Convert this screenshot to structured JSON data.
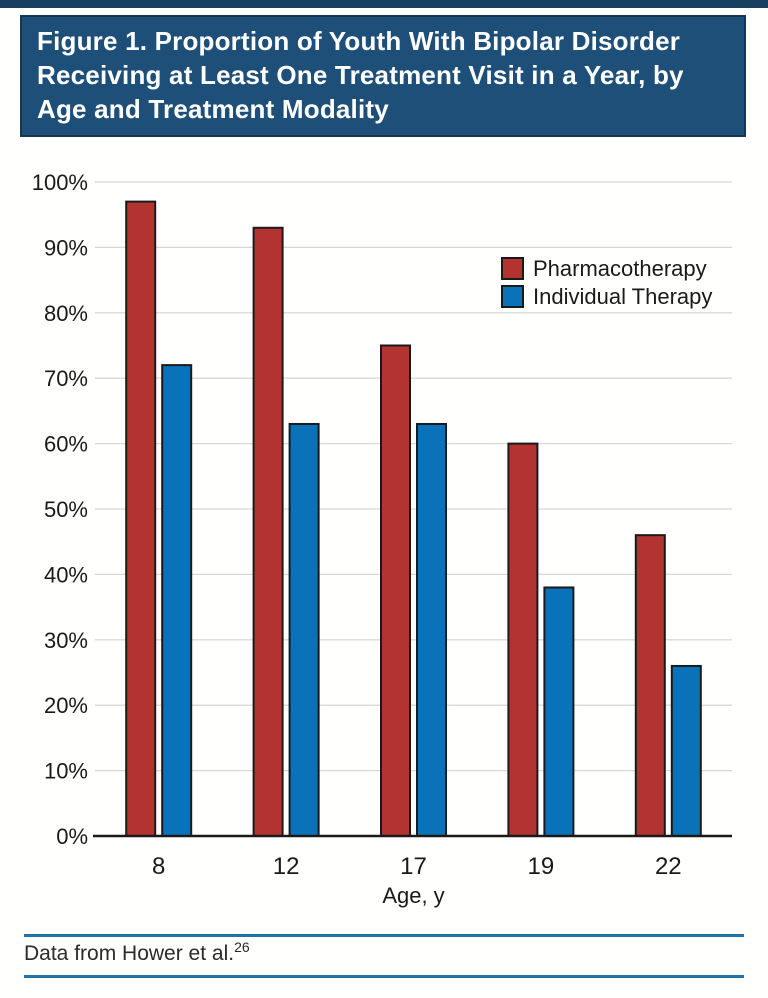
{
  "figure": {
    "title": "Figure 1. Proportion of Youth With Bipolar Disorder Receiving at Least One Treatment Visit in a Year, by Age and Treatment Modality",
    "footer": {
      "source_text": "Data from Hower et al.",
      "citation_superscript": "26"
    }
  },
  "colors": {
    "top_strip": "#173f5f",
    "title_bar_bg": "#1d4f78",
    "title_bar_border": "#143853",
    "footer_rule": "#2173a6",
    "pharmacotherapy_bar": "#b33331",
    "individual_therapy_bar": "#0a72b8",
    "axis": "#1a1a1a",
    "gridline": "#d8d8d8"
  },
  "chart_data": {
    "type": "bar",
    "title": "",
    "categories": [
      "8",
      "12",
      "17",
      "19",
      "22"
    ],
    "series": [
      {
        "name": "Pharmacotherapy",
        "color": "#b33331",
        "values": [
          97,
          93,
          75,
          60,
          46
        ]
      },
      {
        "name": "Individual Therapy",
        "color": "#0a72b8",
        "values": [
          72,
          63,
          63,
          38,
          26
        ]
      }
    ],
    "xlabel": "Age, y",
    "ylabel": "",
    "ylim": [
      0,
      100
    ],
    "ytick_step": 10,
    "ytick_format": "percent",
    "grid": true,
    "legend_position": "upper right"
  }
}
